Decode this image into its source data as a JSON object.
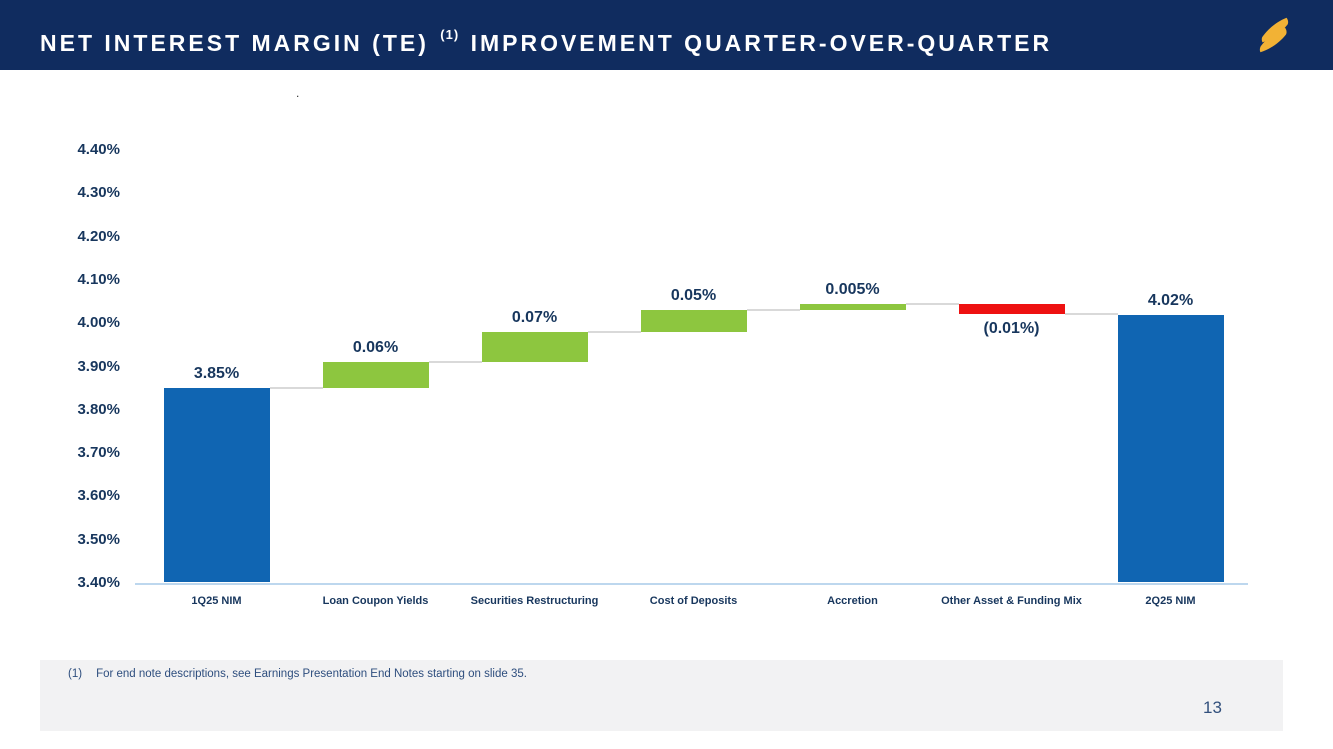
{
  "header": {
    "title_main": "NET INTEREST MARGIN (TE)",
    "title_sup": "(1)",
    "title_tail": "IMPROVEMENT QUARTER-OVER-QUARTER",
    "logo_icon": "stellar-s-logo",
    "colors": {
      "bar_bg": "#102C5F",
      "logo_gold": "#F2B235",
      "title_text": "#FFFFFF"
    }
  },
  "chart_data": {
    "type": "bar",
    "subtype": "waterfall",
    "title": "",
    "xlabel": "",
    "ylabel": "",
    "ylim": [
      3.4,
      4.4
    ],
    "ytick_step": 0.1,
    "ytick_labels": [
      "4.40%",
      "4.30%",
      "4.20%",
      "4.10%",
      "4.00%",
      "3.90%",
      "3.80%",
      "3.70%",
      "3.60%",
      "3.50%",
      "3.40%"
    ],
    "grid": false,
    "legend": "none",
    "categories": [
      "1Q25 NIM",
      "Loan Coupon Yields",
      "Securities Restructuring",
      "Cost of Deposits",
      "Accretion",
      "Other Asset & Funding Mix",
      "2Q25 NIM"
    ],
    "bars": [
      {
        "category": "1Q25 NIM",
        "kind": "total",
        "value": 3.85,
        "value_label": "3.85%",
        "color": "#1065B2",
        "label_position": "above"
      },
      {
        "category": "Loan Coupon Yields",
        "kind": "delta",
        "value": 0.06,
        "value_label": "0.06%",
        "color": "#8DC63F",
        "label_position": "above"
      },
      {
        "category": "Securities Restructuring",
        "kind": "delta",
        "value": 0.07,
        "value_label": "0.07%",
        "color": "#8DC63F",
        "label_position": "above"
      },
      {
        "category": "Cost of Deposits",
        "kind": "delta",
        "value": 0.05,
        "value_label": "0.05%",
        "color": "#8DC63F",
        "label_position": "above"
      },
      {
        "category": "Accretion",
        "kind": "delta",
        "value": 0.005,
        "value_label": "0.005%",
        "color": "#8DC63F",
        "label_position": "above"
      },
      {
        "category": "Other Asset & Funding Mix",
        "kind": "delta",
        "value": -0.01,
        "value_label": "(0.01%)",
        "color": "#EE1111",
        "label_position": "below"
      },
      {
        "category": "2Q25 NIM",
        "kind": "total",
        "value": 4.02,
        "value_label": "4.02%",
        "color": "#1065B2",
        "label_position": "above"
      }
    ],
    "colors": {
      "increase": "#8DC63F",
      "decrease": "#EE1111",
      "total": "#1065B2",
      "connector": "#D9D9D9",
      "axis_line": "#BDD7EE",
      "label_text": "#17365D"
    }
  },
  "footnote": {
    "marker": "(1)",
    "text": "For end note descriptions, see Earnings Presentation End Notes starting on slide 35."
  },
  "footer": {
    "page_number": "13"
  },
  "artifact": {
    "dot": "."
  }
}
